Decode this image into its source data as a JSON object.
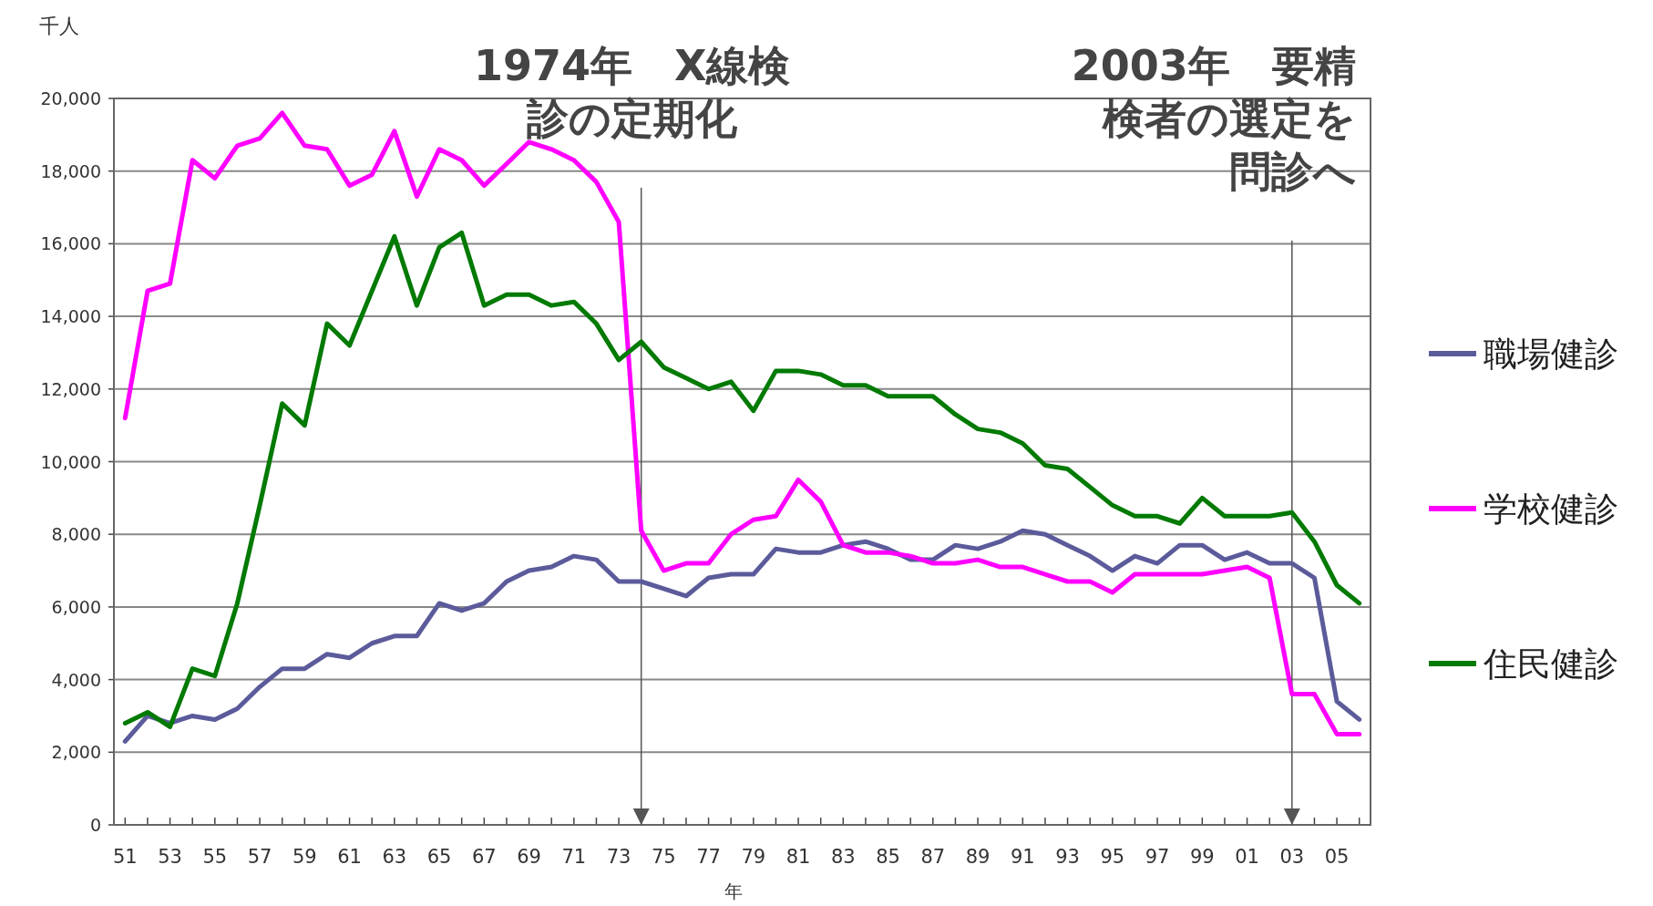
{
  "chart_data": {
    "type": "line",
    "ylabel": "千人",
    "xlabel": "年",
    "x": [
      1951,
      1952,
      1953,
      1954,
      1955,
      1956,
      1957,
      1958,
      1959,
      1960,
      1961,
      1962,
      1963,
      1964,
      1965,
      1966,
      1967,
      1968,
      1969,
      1970,
      1971,
      1972,
      1973,
      1974,
      1975,
      1976,
      1977,
      1978,
      1979,
      1980,
      1981,
      1982,
      1983,
      1984,
      1985,
      1986,
      1987,
      1988,
      1989,
      1990,
      1991,
      1992,
      1993,
      1994,
      1995,
      1996,
      1997,
      1998,
      1999,
      2000,
      2001,
      2002,
      2003,
      2004,
      2005,
      2006
    ],
    "series": [
      {
        "name": "職場健診",
        "color": "#5b5b9b",
        "values": [
          2300,
          3000,
          2800,
          3000,
          2900,
          3200,
          3800,
          4300,
          4300,
          4700,
          4600,
          5000,
          5200,
          5200,
          6100,
          5900,
          6100,
          6700,
          7000,
          7100,
          7400,
          7300,
          6700,
          6700,
          6500,
          6300,
          6800,
          6900,
          6900,
          7600,
          7500,
          7500,
          7700,
          7800,
          7600,
          7300,
          7300,
          7700,
          7600,
          7800,
          8100,
          8000,
          7700,
          7400,
          7000,
          7400,
          7200,
          7700,
          7700,
          7300,
          7500,
          7200,
          7200,
          6800,
          3400,
          2900
        ]
      },
      {
        "name": "学校健診",
        "color": "#ff00ff",
        "values": [
          11200,
          14700,
          14900,
          18300,
          17800,
          18700,
          18900,
          19600,
          18700,
          18600,
          17600,
          17900,
          19100,
          17300,
          18600,
          18300,
          17600,
          18200,
          18800,
          18600,
          18300,
          17700,
          16600,
          8100,
          7000,
          7200,
          7200,
          8000,
          8400,
          8500,
          9500,
          8900,
          7700,
          7500,
          7500,
          7400,
          7200,
          7200,
          7300,
          7100,
          7100,
          6900,
          6700,
          6700,
          6400,
          6900,
          6900,
          6900,
          6900,
          7000,
          7100,
          6800,
          3600,
          3600,
          2500,
          2500
        ]
      },
      {
        "name": "住民健診",
        "color": "#007a00",
        "values": [
          2800,
          3100,
          2700,
          4300,
          4100,
          6100,
          8800,
          11600,
          11000,
          13800,
          13200,
          14700,
          16200,
          14300,
          15900,
          16300,
          14300,
          14600,
          14600,
          14300,
          14400,
          13800,
          12800,
          13300,
          12600,
          12300,
          12000,
          12200,
          11400,
          12500,
          12500,
          12400,
          12100,
          12100,
          11800,
          11800,
          11800,
          11300,
          10900,
          10800,
          10500,
          9900,
          9800,
          9300,
          8800,
          8500,
          8500,
          8300,
          9000,
          8500,
          8500,
          8500,
          8600,
          7800,
          6600,
          6100
        ]
      }
    ],
    "xlim": [
      1950.5,
      2006.5
    ],
    "xticks": [
      {
        "value": 1951,
        "label": "51"
      },
      {
        "value": 1952,
        "label": null
      },
      {
        "value": 1953,
        "label": "53"
      },
      {
        "value": 1954,
        "label": null
      },
      {
        "value": 1955,
        "label": "55"
      },
      {
        "value": 1956,
        "label": null
      },
      {
        "value": 1957,
        "label": "57"
      },
      {
        "value": 1958,
        "label": null
      },
      {
        "value": 1959,
        "label": "59"
      },
      {
        "value": 1960,
        "label": null
      },
      {
        "value": 1961,
        "label": "61"
      },
      {
        "value": 1962,
        "label": null
      },
      {
        "value": 1963,
        "label": "63"
      },
      {
        "value": 1964,
        "label": null
      },
      {
        "value": 1965,
        "label": "65"
      },
      {
        "value": 1966,
        "label": null
      },
      {
        "value": 1967,
        "label": "67"
      },
      {
        "value": 1968,
        "label": null
      },
      {
        "value": 1969,
        "label": "69"
      },
      {
        "value": 1970,
        "label": null
      },
      {
        "value": 1971,
        "label": "71"
      },
      {
        "value": 1972,
        "label": null
      },
      {
        "value": 1973,
        "label": "73"
      },
      {
        "value": 1974,
        "label": null
      },
      {
        "value": 1975,
        "label": "75"
      },
      {
        "value": 1976,
        "label": null
      },
      {
        "value": 1977,
        "label": "77"
      },
      {
        "value": 1978,
        "label": null
      },
      {
        "value": 1979,
        "label": "79"
      },
      {
        "value": 1980,
        "label": null
      },
      {
        "value": 1981,
        "label": "81"
      },
      {
        "value": 1982,
        "label": null
      },
      {
        "value": 1983,
        "label": "83"
      },
      {
        "value": 1984,
        "label": null
      },
      {
        "value": 1985,
        "label": "85"
      },
      {
        "value": 1986,
        "label": null
      },
      {
        "value": 1987,
        "label": "87"
      },
      {
        "value": 1988,
        "label": null
      },
      {
        "value": 1989,
        "label": "89"
      },
      {
        "value": 1990,
        "label": null
      },
      {
        "value": 1991,
        "label": "91"
      },
      {
        "value": 1992,
        "label": null
      },
      {
        "value": 1993,
        "label": "93"
      },
      {
        "value": 1994,
        "label": null
      },
      {
        "value": 1995,
        "label": "95"
      },
      {
        "value": 1996,
        "label": null
      },
      {
        "value": 1997,
        "label": "97"
      },
      {
        "value": 1998,
        "label": null
      },
      {
        "value": 1999,
        "label": "99"
      },
      {
        "value": 2000,
        "label": null
      },
      {
        "value": 2001,
        "label": "01"
      },
      {
        "value": 2002,
        "label": null
      },
      {
        "value": 2003,
        "label": "03"
      },
      {
        "value": 2004,
        "label": null
      },
      {
        "value": 2005,
        "label": "05"
      },
      {
        "value": 2006,
        "label": null
      }
    ],
    "ylim": [
      0,
      20000
    ],
    "yticks": [
      {
        "value": 0,
        "label": "0"
      },
      {
        "value": 2000,
        "label": "2,000"
      },
      {
        "value": 4000,
        "label": "4,000"
      },
      {
        "value": 6000,
        "label": "6,000"
      },
      {
        "value": 8000,
        "label": "8,000"
      },
      {
        "value": 10000,
        "label": "10,000"
      },
      {
        "value": 12000,
        "label": "12,000"
      },
      {
        "value": 14000,
        "label": "14,000"
      },
      {
        "value": 16000,
        "label": "16,000"
      },
      {
        "value": 18000,
        "label": "18,000"
      },
      {
        "value": 20000,
        "label": "20,000"
      }
    ],
    "ref_lines": [
      {
        "axis": "x",
        "value": 1974,
        "label": "1974年　X線検診の定期化",
        "color": "#555555"
      },
      {
        "axis": "x",
        "value": 2003,
        "label": "2003年　要精検者の選定を問診へ",
        "color": "#555555"
      }
    ],
    "grid": "y",
    "legend": "right",
    "marker": "none",
    "line_style": "solid"
  }
}
